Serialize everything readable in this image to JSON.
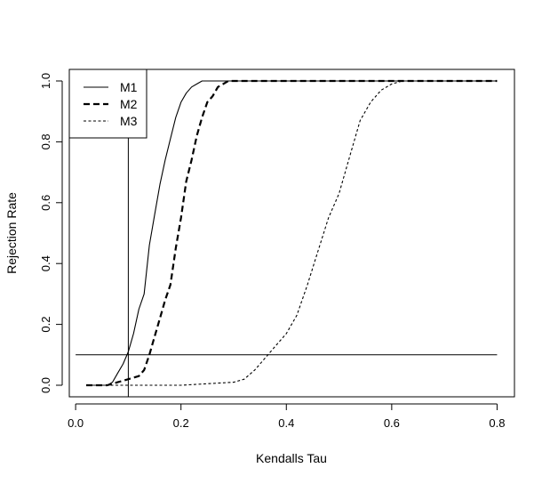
{
  "chart_data": {
    "type": "line",
    "title": "",
    "xlabel": "Kendalls Tau",
    "ylabel": "Rejection Rate",
    "xlim": [
      -0.012,
      0.833
    ],
    "ylim": [
      -0.038,
      1.038
    ],
    "xticks": [
      {
        "value": 0.0,
        "label": "0.0"
      },
      {
        "value": 0.2,
        "label": "0.2"
      },
      {
        "value": 0.4,
        "label": "0.4"
      },
      {
        "value": 0.6,
        "label": "0.6"
      },
      {
        "value": 0.8,
        "label": "0.8"
      }
    ],
    "yticks": [
      {
        "value": 0.0,
        "label": "0.0"
      },
      {
        "value": 0.2,
        "label": "0.2"
      },
      {
        "value": 0.4,
        "label": "0.4"
      },
      {
        "value": 0.6,
        "label": "0.6"
      },
      {
        "value": 0.8,
        "label": "0.8"
      },
      {
        "value": 1.0,
        "label": "1.0"
      }
    ],
    "grid": false,
    "legend_position": "top-left",
    "series": [
      {
        "name": "M1",
        "style": "solid",
        "x": [
          0.02,
          0.04,
          0.06,
          0.07,
          0.08,
          0.09,
          0.1,
          0.11,
          0.12,
          0.13,
          0.14,
          0.15,
          0.16,
          0.17,
          0.18,
          0.19,
          0.2,
          0.21,
          0.22,
          0.23,
          0.24,
          0.25,
          0.27,
          0.3,
          0.4,
          0.5,
          0.6,
          0.7,
          0.8
        ],
        "y": [
          0.0,
          0.0,
          0.0,
          0.01,
          0.04,
          0.07,
          0.11,
          0.17,
          0.25,
          0.3,
          0.46,
          0.56,
          0.66,
          0.74,
          0.81,
          0.88,
          0.93,
          0.96,
          0.98,
          0.99,
          1.0,
          1.0,
          1.0,
          1.0,
          1.0,
          1.0,
          1.0,
          1.0,
          1.0
        ]
      },
      {
        "name": "M2",
        "style": "dashed",
        "x": [
          0.02,
          0.04,
          0.06,
          0.08,
          0.1,
          0.12,
          0.13,
          0.14,
          0.15,
          0.16,
          0.17,
          0.18,
          0.19,
          0.2,
          0.21,
          0.22,
          0.23,
          0.24,
          0.25,
          0.26,
          0.27,
          0.28,
          0.29,
          0.3,
          0.4,
          0.5,
          0.6,
          0.7,
          0.8
        ],
        "y": [
          0.0,
          0.0,
          0.0,
          0.01,
          0.02,
          0.03,
          0.05,
          0.1,
          0.16,
          0.22,
          0.28,
          0.33,
          0.45,
          0.55,
          0.67,
          0.74,
          0.82,
          0.88,
          0.93,
          0.95,
          0.98,
          0.99,
          1.0,
          1.0,
          1.0,
          1.0,
          1.0,
          1.0,
          1.0
        ]
      },
      {
        "name": "M3",
        "style": "dotted",
        "x": [
          0.02,
          0.05,
          0.1,
          0.15,
          0.2,
          0.25,
          0.3,
          0.32,
          0.34,
          0.36,
          0.38,
          0.4,
          0.42,
          0.44,
          0.46,
          0.48,
          0.5,
          0.52,
          0.54,
          0.56,
          0.58,
          0.6,
          0.62,
          0.64,
          0.7,
          0.8
        ],
        "y": [
          0.0,
          0.0,
          0.0,
          0.0,
          0.0,
          0.005,
          0.01,
          0.02,
          0.05,
          0.09,
          0.13,
          0.17,
          0.23,
          0.33,
          0.44,
          0.55,
          0.63,
          0.75,
          0.87,
          0.93,
          0.97,
          0.99,
          1.0,
          1.0,
          1.0,
          1.0
        ]
      }
    ],
    "reference_lines": [
      {
        "orientation": "horizontal",
        "value": 0.1,
        "from": 0.0,
        "to": 0.8
      },
      {
        "orientation": "vertical",
        "value": 0.1
      }
    ]
  }
}
